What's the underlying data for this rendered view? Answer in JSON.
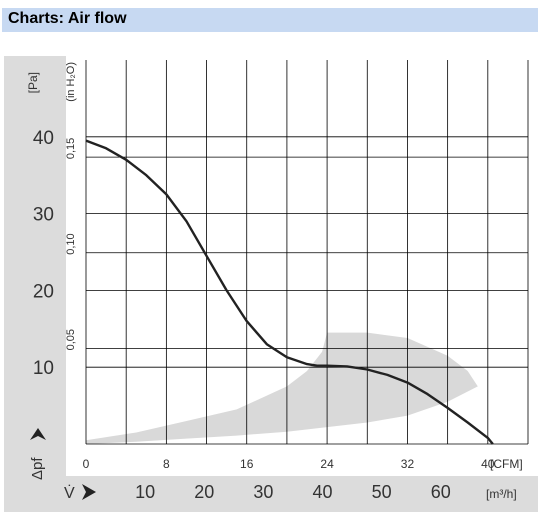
{
  "header": {
    "title": "Charts: Air flow"
  },
  "chart_data": {
    "type": "line",
    "title": "",
    "x_primary": {
      "label": "[CFM]",
      "ticks": [
        0,
        8,
        16,
        24,
        32,
        40
      ],
      "range": [
        0,
        44
      ]
    },
    "x_secondary": {
      "label": "[m³/h]",
      "prefix": "V̇",
      "ticks": [
        10,
        20,
        30,
        40,
        50,
        60
      ]
    },
    "y_primary": {
      "label": "[Pa]",
      "prefix": "Δpf",
      "ticks": [
        10,
        20,
        30,
        40
      ],
      "range": [
        0,
        50
      ]
    },
    "y_secondary": {
      "label": "(in H₂O)",
      "ticks": [
        "0,05",
        "0,10",
        "0,15"
      ]
    },
    "grid": true,
    "series": [
      {
        "x": [
          0,
          2,
          4,
          6,
          8,
          10,
          12,
          14,
          16,
          18,
          20,
          22,
          23,
          24,
          26,
          28,
          30,
          32,
          34,
          36,
          38,
          40,
          40.5
        ],
        "y": [
          39.5,
          38.5,
          37,
          35,
          32.5,
          29,
          24.5,
          20,
          16,
          13,
          11.3,
          10.4,
          10.2,
          10.2,
          10.1,
          9.7,
          9.0,
          8.0,
          6.5,
          4.7,
          2.8,
          0.8,
          0
        ]
      }
    ],
    "operating_range": {
      "upper": {
        "x": [
          0,
          5,
          10,
          15,
          20,
          22,
          23.5,
          24,
          28,
          32,
          36,
          38,
          39
        ],
        "y": [
          0.5,
          1.5,
          3,
          4.5,
          7.5,
          9.5,
          12,
          14.5,
          14.5,
          13.8,
          11.5,
          9.5,
          7.5
        ]
      },
      "lower": {
        "x": [
          39,
          36,
          32,
          28,
          24,
          20,
          15,
          10,
          5,
          0
        ],
        "y": [
          7.5,
          5.5,
          3.7,
          2.8,
          2.2,
          1.6,
          1.1,
          0.7,
          0.3,
          0
        ]
      }
    },
    "colors": {
      "curve": "#222222",
      "band": "#d9d9d9",
      "axis_bg": "#dcdcdc",
      "grid": "#000000"
    }
  }
}
